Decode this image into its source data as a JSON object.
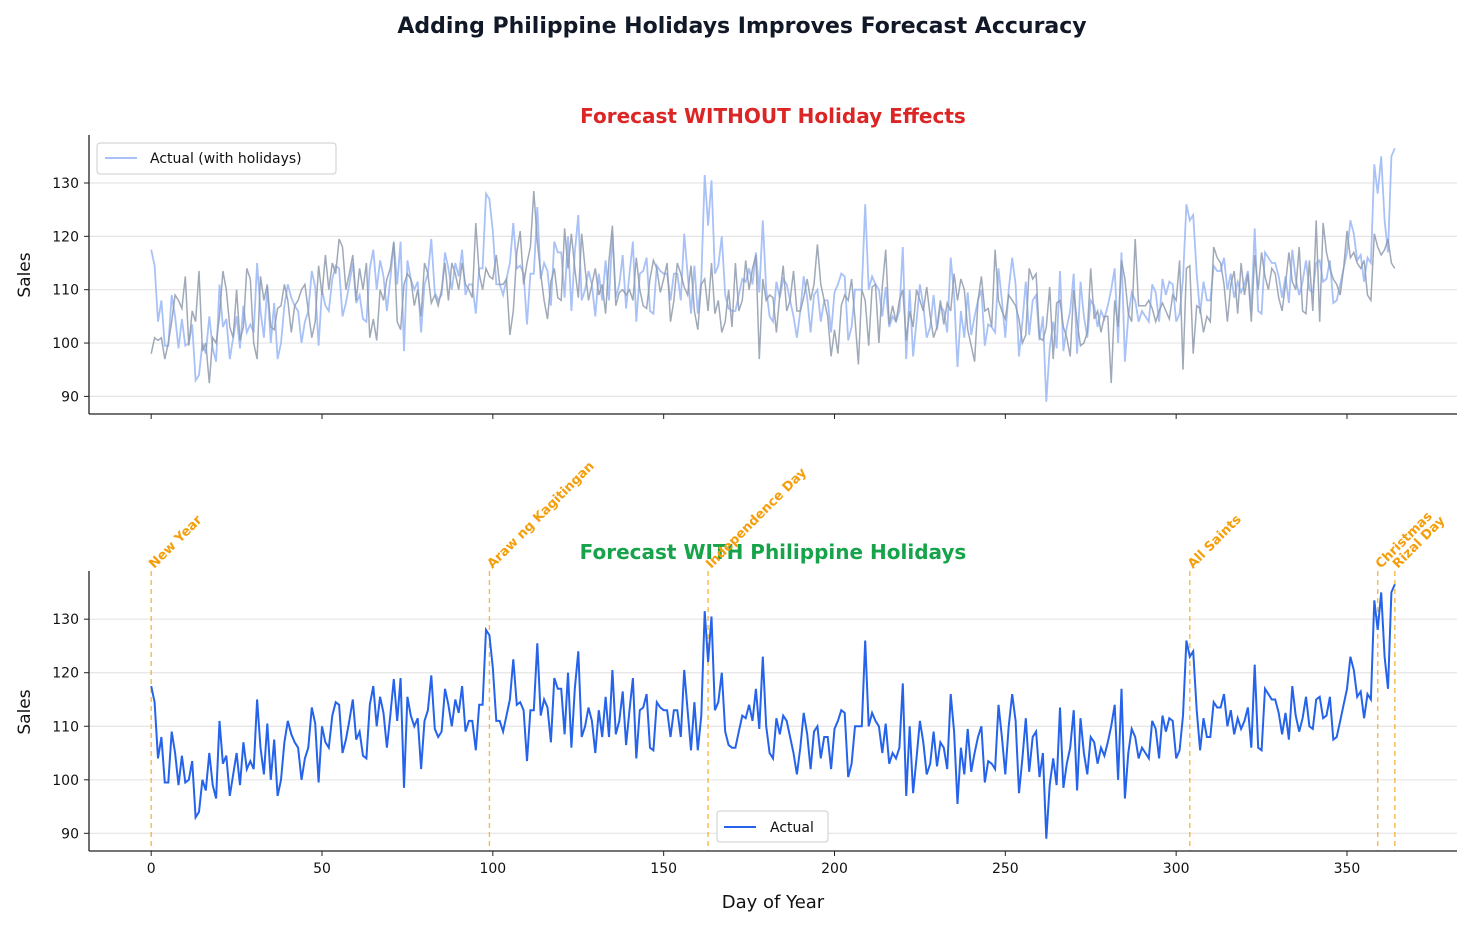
{
  "chart_data": {
    "title": "Adding Philippine Holidays Improves Forecast Accuracy",
    "type": "line",
    "xlim": [
      -18.2,
      382.2
    ],
    "ylim": [
      86.7,
      139
    ],
    "x_ticks": [
      0,
      50,
      100,
      150,
      200,
      250,
      300,
      350
    ],
    "y_ticks": [
      90,
      100,
      110,
      120,
      130
    ],
    "grid": "horizontal",
    "colors": {
      "actual": "#2563eb",
      "actual_faded": "#a8c1f7",
      "forecast": "#8e9aab",
      "holiday": "#f5a623",
      "holiday_text": "#f59e0b",
      "title_without": "#dc2626",
      "title_with": "#16a34a",
      "title": "#111827"
    },
    "actual": [
      117.5,
      114.5,
      104,
      108,
      99.5,
      99.5,
      109,
      105,
      99,
      104.5,
      99.5,
      100,
      103.5,
      93,
      94,
      100,
      98,
      105,
      99,
      96.5,
      111,
      103,
      104.5,
      97,
      101,
      105,
      99,
      107,
      102,
      103.5,
      102,
      115,
      106,
      101,
      110.5,
      100,
      107.5,
      97,
      100,
      107,
      111,
      108.5,
      107,
      106,
      100,
      104,
      106,
      113.5,
      110.5,
      99.5,
      110,
      107,
      106,
      112,
      114.5,
      114,
      105,
      107.5,
      111,
      115,
      107.5,
      109,
      104.5,
      104,
      114,
      117.5,
      110,
      115.5,
      112.5,
      106,
      112,
      118.8,
      111,
      119,
      98.5,
      115.5,
      112,
      110,
      111.5,
      102,
      111,
      113,
      119.5,
      109.5,
      108,
      109,
      117,
      114,
      110,
      115,
      112.5,
      117.5,
      109,
      111,
      111,
      105.5,
      114,
      114,
      128,
      127,
      121,
      111,
      111,
      109,
      112,
      115,
      122.5,
      114,
      114.5,
      113,
      103.5,
      113,
      113,
      125.5,
      112,
      115,
      113.5,
      107,
      119,
      117,
      117,
      108.5,
      120,
      106,
      117,
      124,
      108,
      110,
      113.5,
      111,
      105,
      113,
      108,
      115.5,
      108,
      120.5,
      108.5,
      111,
      116.5,
      106.5,
      113,
      119,
      104,
      113,
      113.5,
      116,
      106,
      105.5,
      114.5,
      113.5,
      113,
      113,
      108,
      113,
      113,
      108,
      120.5,
      113,
      105.5,
      114.5,
      105.5,
      112,
      131.5,
      122,
      130.5,
      113,
      114.5,
      120,
      109,
      106.5,
      106,
      106,
      109,
      112,
      111.5,
      114,
      111,
      117,
      109.5,
      123,
      110,
      105,
      104,
      111.5,
      108.5,
      112,
      111,
      108,
      105,
      101,
      106,
      112.5,
      108.5,
      102,
      109,
      110,
      104,
      108,
      108,
      102,
      109.5,
      111,
      113,
      112.5,
      100.5,
      103,
      110,
      110,
      110,
      126,
      110,
      112.5,
      111,
      110,
      105,
      110.5,
      103,
      105,
      104,
      106,
      118,
      97,
      110,
      97.5,
      104,
      111,
      107,
      101,
      103,
      109,
      102.5,
      107,
      106,
      102,
      116,
      109,
      95.5,
      106,
      101,
      109.5,
      101.5,
      105,
      108,
      110,
      99.5,
      103.5,
      103,
      102,
      114,
      108,
      101,
      110,
      116,
      111,
      97.5,
      104,
      111.5,
      101.5,
      108,
      109,
      100.5,
      105,
      89,
      99,
      104,
      99,
      113.5,
      98.5,
      103,
      106,
      113,
      98,
      111.5,
      105,
      101,
      108,
      107,
      103,
      106,
      104.5,
      107,
      110,
      114,
      100,
      117,
      96.5,
      105,
      109.5,
      108,
      104,
      106,
      105,
      104,
      111,
      109.5,
      104,
      112,
      109,
      111.5,
      111,
      104,
      105.5,
      112,
      126,
      123,
      124,
      113,
      105.5,
      111.5,
      108,
      108,
      114.5,
      113.5,
      113.5,
      116,
      110,
      113,
      108.5,
      111.5,
      109.5,
      111,
      113.5,
      106,
      121.5,
      106,
      105.5,
      117,
      116,
      115,
      115,
      112.5,
      108.5,
      112.5,
      107.5,
      117.5,
      112,
      109,
      111.5,
      115.5,
      110,
      109.5,
      115,
      115.5,
      111.5,
      112,
      115.5,
      107.5,
      108,
      111,
      114,
      117,
      123,
      120.5,
      115.5,
      116.5,
      111.5,
      116,
      115,
      133.5,
      128,
      135,
      123,
      117,
      135,
      136.5
    ],
    "forecast_without_holidays": [
      98,
      101,
      100.5,
      101,
      97,
      100,
      104,
      109,
      108,
      106.5,
      112.5,
      99.5,
      106,
      104,
      113.5,
      98.5,
      100,
      92.5,
      101,
      100,
      105,
      113.5,
      110,
      103,
      101,
      110,
      100.5,
      103,
      114,
      112,
      100,
      97,
      112.5,
      108,
      111,
      103,
      102.5,
      106.5,
      107,
      111,
      108,
      102,
      107,
      108,
      110,
      111,
      106,
      101,
      104,
      114.5,
      109,
      116.5,
      110,
      115,
      113,
      119.5,
      118,
      110,
      113,
      116.5,
      108,
      114,
      110,
      115,
      101,
      104.5,
      100.5,
      110,
      108,
      112,
      114,
      119,
      104,
      102.5,
      111,
      113,
      112,
      107,
      110,
      105,
      115,
      113,
      107.5,
      109,
      107,
      110,
      115,
      108,
      115,
      113,
      110,
      115,
      111,
      110,
      108.5,
      122.5,
      113,
      110,
      114,
      112.5,
      112,
      116.5,
      111,
      111,
      112,
      101.5,
      106,
      117,
      121,
      111,
      115,
      118,
      128.5,
      119,
      113,
      108,
      104.5,
      111.5,
      114,
      108.5,
      108,
      121.5,
      114,
      120.5,
      114,
      108.5,
      120.5,
      114,
      108,
      111,
      114,
      109,
      111,
      105.5,
      115.5,
      122,
      107,
      109.5,
      110,
      109,
      110,
      108,
      116,
      110,
      107,
      106.5,
      112,
      115.5,
      114,
      109.5,
      112,
      115,
      104,
      108,
      115,
      113,
      110.5,
      109,
      114.5,
      106,
      102.5,
      111,
      112,
      106,
      115,
      105.5,
      108,
      102,
      104,
      110,
      103,
      115,
      106,
      108,
      115.5,
      110,
      114,
      116.5,
      97,
      112,
      108,
      109,
      108.5,
      102,
      109,
      114.5,
      106,
      108,
      113.5,
      106,
      106,
      108.5,
      112,
      108,
      111,
      118.5,
      111,
      108,
      105,
      97.5,
      102.5,
      98,
      107,
      109,
      108,
      112,
      104.5,
      96,
      110,
      108,
      99.5,
      110.5,
      111,
      100,
      110.5,
      117.5,
      103.5,
      107,
      104,
      108,
      110,
      100.5,
      106,
      103,
      110,
      108,
      106,
      110.5,
      105,
      101,
      103,
      108,
      103.5,
      107.5,
      106,
      113,
      108,
      112,
      110,
      102.5,
      99.5,
      96.5,
      108,
      112.5,
      106,
      106.5,
      103,
      117.5,
      108,
      106,
      104.5,
      109,
      108,
      107,
      104.5,
      100,
      101.5,
      114,
      112,
      113,
      101,
      100.5,
      103,
      110.5,
      97,
      107.5,
      108,
      103,
      101,
      97.5,
      110,
      104,
      99.5,
      100,
      102,
      114,
      104.5,
      106,
      102,
      105,
      105,
      92.5,
      108,
      103,
      115.5,
      112,
      105.5,
      104,
      119.5,
      107,
      107,
      107,
      108,
      106.5,
      104,
      106,
      107.5,
      106,
      104.5,
      109,
      108,
      115.5,
      95,
      114,
      114.5,
      98,
      107,
      106.5,
      102,
      105,
      104,
      118,
      116,
      115,
      111,
      104,
      111,
      113.5,
      105.5,
      115,
      109,
      113,
      104,
      116.5,
      110,
      117,
      112.5,
      110,
      114,
      113,
      108.5,
      106,
      111,
      117,
      111.5,
      110,
      118,
      106,
      105.5,
      115.5,
      106,
      123,
      104,
      122.5,
      117,
      114,
      112,
      111,
      109,
      114,
      121,
      116,
      117,
      115,
      114,
      115.5,
      109,
      108,
      120.5,
      118,
      116.5,
      117.5,
      119.5,
      115,
      114
    ],
    "holidays": [
      {
        "name": "New Year",
        "day": 0
      },
      {
        "name": "Araw ng Kagitingan",
        "day": 99
      },
      {
        "name": "Independence Day",
        "day": 163
      },
      {
        "name": "All Saints",
        "day": 304
      },
      {
        "name": "Christmas",
        "day": 359
      },
      {
        "name": "Rizal Day",
        "day": 364
      }
    ],
    "panels": [
      {
        "title": "Forecast WITHOUT Holiday Effects",
        "ylabel": "Sales",
        "legend": "Actual (with holidays)",
        "legend_position": "upper-left"
      },
      {
        "title": "Forecast WITH Philippine Holidays",
        "ylabel": "Sales",
        "xlabel": "Day of Year",
        "legend": "Actual",
        "legend_position": "lower-center"
      }
    ]
  }
}
